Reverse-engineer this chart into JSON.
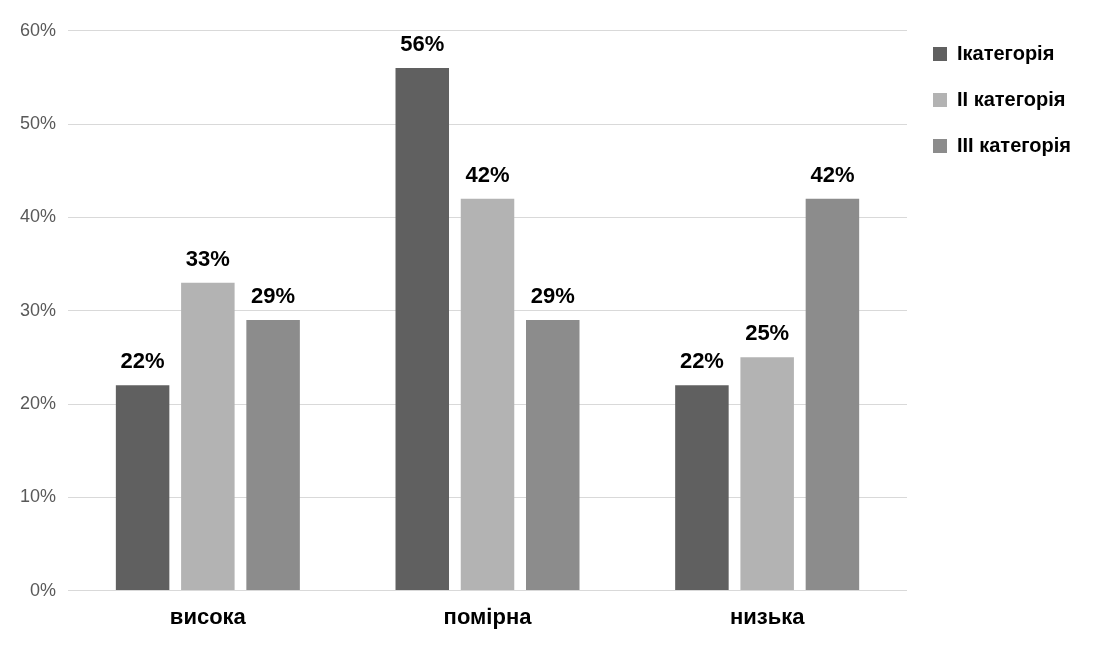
{
  "chart_data": {
    "type": "bar",
    "categories": [
      "висока",
      "помірна",
      "низька"
    ],
    "series": [
      {
        "name": "Ікатегорія",
        "color": "#606060",
        "values": [
          22,
          56,
          22
        ],
        "value_labels": [
          "22%",
          "56%",
          "22%"
        ]
      },
      {
        "name": "II категорія",
        "color": "#b3b3b3",
        "values": [
          33,
          42,
          25
        ],
        "value_labels": [
          "33%",
          "42%",
          "25%"
        ]
      },
      {
        "name": "III категорія",
        "color": "#8c8c8c",
        "values": [
          29,
          29,
          42
        ],
        "value_labels": [
          "29%",
          "29%",
          "42%"
        ]
      }
    ],
    "ylim": [
      0,
      60
    ],
    "yticks": [
      {
        "value": 0,
        "label": "0%"
      },
      {
        "value": 10,
        "label": "10%"
      },
      {
        "value": 20,
        "label": "20%"
      },
      {
        "value": 30,
        "label": "30%"
      },
      {
        "value": 40,
        "label": "40%"
      },
      {
        "value": 50,
        "label": "50%"
      },
      {
        "value": 60,
        "label": "60%"
      }
    ],
    "grid": "y",
    "legend": "top right"
  }
}
